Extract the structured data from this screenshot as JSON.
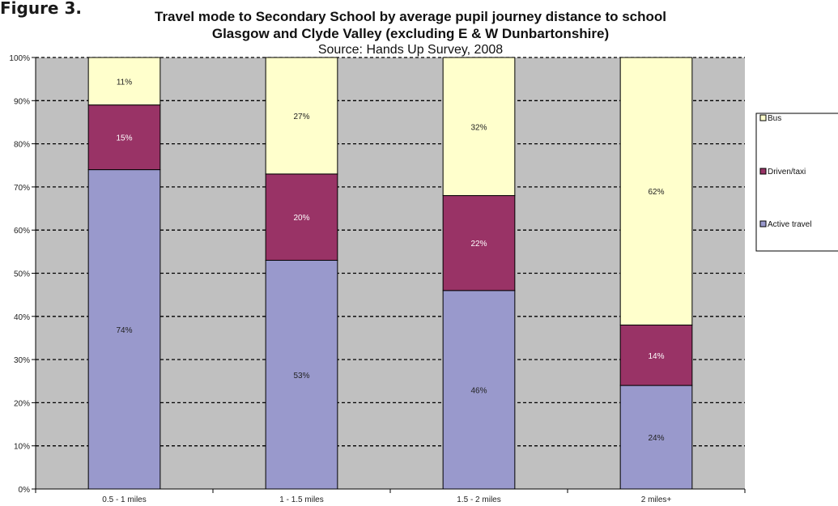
{
  "figure_label": "Figure 3.",
  "chart_data": {
    "type": "bar",
    "stacked": true,
    "percent_stacked": true,
    "title": "Travel mode to Secondary School by average pupil journey distance to school",
    "title_line2": "Glasgow and Clyde Valley (excluding E & W Dunbartonshire)",
    "subtitle": "Source: Hands Up Survey, 2008",
    "xlabel": "",
    "ylabel": "",
    "ylim": [
      0,
      100
    ],
    "y_ticks": [
      "0%",
      "10%",
      "20%",
      "30%",
      "40%",
      "50%",
      "60%",
      "70%",
      "80%",
      "90%",
      "100%"
    ],
    "grid": true,
    "legend_position": "right",
    "categories": [
      "0.5 - 1 miles",
      "1 - 1.5 miles",
      "1.5 - 2 miles",
      "2 miles+"
    ],
    "series": [
      {
        "name": "Active travel",
        "values": [
          74,
          53,
          46,
          24
        ],
        "labels": [
          "74%",
          "53%",
          "46%",
          "24%"
        ],
        "color": "#9999cc",
        "label_color": "#222222"
      },
      {
        "name": "Driven/taxi",
        "values": [
          15,
          20,
          22,
          14
        ],
        "labels": [
          "15%",
          "20%",
          "22%",
          "14%"
        ],
        "color": "#993366",
        "label_color": "#ffffff"
      },
      {
        "name": "Bus",
        "values": [
          11,
          27,
          32,
          62
        ],
        "labels": [
          "11%",
          "27%",
          "32%",
          "62%"
        ],
        "color": "#ffffcc",
        "label_color": "#222222"
      }
    ],
    "legend_order": [
      "Bus",
      "Driven/taxi",
      "Active travel"
    ],
    "plot_background": "#c0c0c0"
  }
}
